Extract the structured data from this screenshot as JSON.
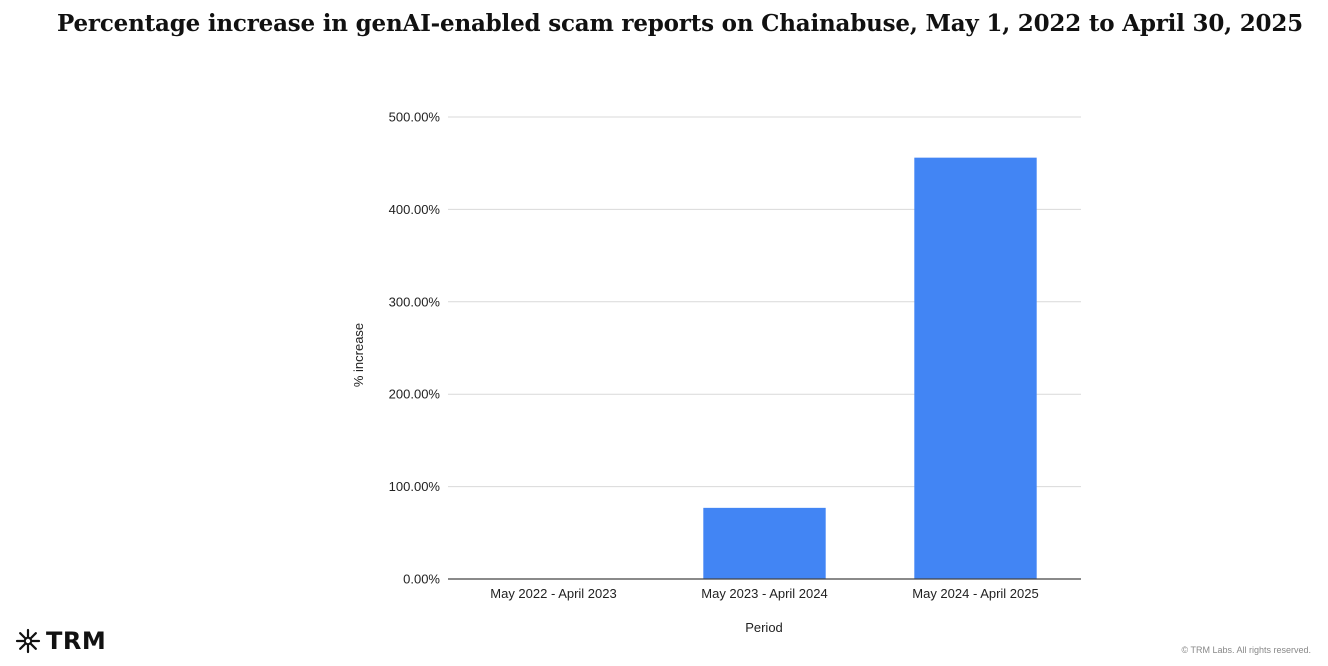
{
  "chart_data": {
    "type": "bar",
    "title": "Percentage increase in genAI-enabled scam reports on Chainabuse, May 1, 2022 to April 30, 2025",
    "xlabel": "Period",
    "ylabel": "% increase",
    "categories": [
      "May 2022 - April 2023",
      "May 2023 - April 2024",
      "May 2024 - April 2025"
    ],
    "series": [
      {
        "values": [
          0,
          77,
          456
        ]
      }
    ],
    "ylim": [
      0,
      500
    ],
    "yticks": [
      0,
      100,
      200,
      300,
      400,
      500
    ],
    "ytick_labels": [
      "0.00%",
      "100.00%",
      "200.00%",
      "300.00%",
      "400.00%",
      "500.00%"
    ],
    "bar_color": "#4285F4",
    "grid": true,
    "legend": "none"
  },
  "branding": {
    "logo_text": "TRM",
    "copyright": "© TRM Labs. All rights reserved."
  },
  "icons": {
    "logo_mark": "trm-asterisk-icon"
  }
}
